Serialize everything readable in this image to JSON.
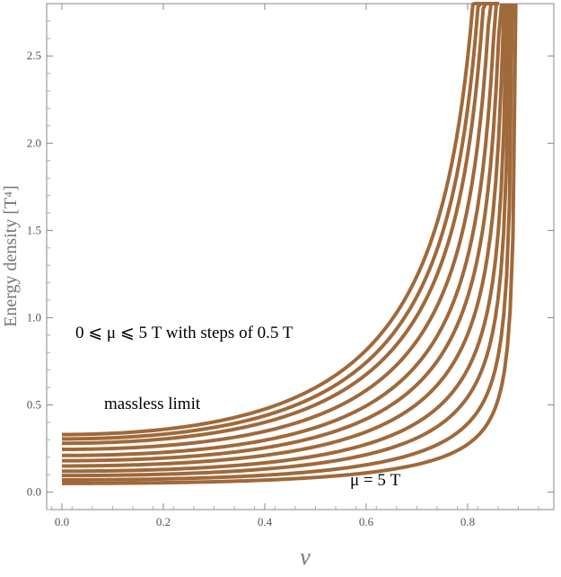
{
  "chart_data": {
    "type": "line",
    "xlabel": "v",
    "ylabel": "Energy density [T⁴]",
    "xlim": [
      -0.03,
      0.97
    ],
    "ylim": [
      -0.1,
      2.8
    ],
    "grid": false,
    "x_ticks": [
      0.0,
      0.2,
      0.4,
      0.6,
      0.8
    ],
    "x_tick_labels": [
      "0.0",
      "0.2",
      "0.4",
      "0.6",
      "0.8"
    ],
    "y_ticks": [
      0.0,
      0.5,
      1.0,
      1.5,
      2.0,
      2.5
    ],
    "y_tick_labels": [
      "0.0",
      "0.5",
      "1.0",
      "1.5",
      "2.0",
      "2.5"
    ],
    "line_color": "#a0693a",
    "series": [
      {
        "name": "",
        "mu": 0.0,
        "values": [
          0.33,
          0.35,
          0.41,
          0.53,
          0.79,
          1.66,
          2.8
        ],
        "x": [
          0.0,
          0.2,
          0.4,
          0.6,
          0.7,
          0.8,
          0.842
        ]
      },
      {
        "name": "",
        "mu": 0.5,
        "values": [
          0.305,
          0.32,
          0.38,
          0.49,
          0.73,
          1.54,
          2.8
        ],
        "x": [
          0.0,
          0.2,
          0.4,
          0.6,
          0.7,
          0.8,
          0.847
        ]
      },
      {
        "name": "",
        "mu": 1.0,
        "values": [
          0.28,
          0.29,
          0.345,
          0.45,
          0.67,
          1.41,
          2.8
        ],
        "x": [
          0.0,
          0.2,
          0.4,
          0.6,
          0.7,
          0.8,
          0.852
        ]
      },
      {
        "name": "",
        "mu": 1.5,
        "values": [
          0.245,
          0.26,
          0.31,
          0.4,
          0.6,
          1.26,
          2.8
        ],
        "x": [
          0.0,
          0.2,
          0.4,
          0.6,
          0.7,
          0.8,
          0.857
        ]
      },
      {
        "name": "",
        "mu": 2.0,
        "values": [
          0.21,
          0.225,
          0.27,
          0.35,
          0.52,
          1.1,
          2.8
        ],
        "x": [
          0.0,
          0.2,
          0.4,
          0.6,
          0.7,
          0.8,
          0.862
        ]
      },
      {
        "name": "",
        "mu": 2.5,
        "values": [
          0.18,
          0.19,
          0.23,
          0.3,
          0.45,
          0.95,
          2.8
        ],
        "x": [
          0.0,
          0.2,
          0.4,
          0.6,
          0.7,
          0.8,
          0.867
        ]
      },
      {
        "name": "",
        "mu": 3.0,
        "values": [
          0.15,
          0.16,
          0.19,
          0.25,
          0.37,
          0.79,
          2.8
        ],
        "x": [
          0.0,
          0.2,
          0.4,
          0.6,
          0.7,
          0.8,
          0.872
        ]
      },
      {
        "name": "",
        "mu": 3.5,
        "values": [
          0.12,
          0.13,
          0.155,
          0.2,
          0.3,
          0.64,
          2.8
        ],
        "x": [
          0.0,
          0.2,
          0.4,
          0.6,
          0.7,
          0.8,
          0.877
        ]
      },
      {
        "name": "",
        "mu": 4.0,
        "values": [
          0.095,
          0.1,
          0.12,
          0.16,
          0.24,
          0.51,
          2.8
        ],
        "x": [
          0.0,
          0.2,
          0.4,
          0.6,
          0.7,
          0.8,
          0.882
        ]
      },
      {
        "name": "",
        "mu": 4.5,
        "values": [
          0.07,
          0.075,
          0.09,
          0.12,
          0.18,
          0.39,
          2.8
        ],
        "x": [
          0.0,
          0.2,
          0.4,
          0.6,
          0.7,
          0.8,
          0.888
        ]
      },
      {
        "name": "",
        "mu": 5.0,
        "values": [
          0.05,
          0.055,
          0.065,
          0.09,
          0.13,
          0.28,
          2.8
        ],
        "x": [
          0.0,
          0.2,
          0.4,
          0.6,
          0.7,
          0.8,
          0.895
        ]
      }
    ],
    "annotations": [
      {
        "id": "range",
        "text": "0 ⩽ μ ⩽ 5 T  with steps of 0.5 T"
      },
      {
        "id": "massless",
        "text": "massless limit"
      },
      {
        "id": "mu5",
        "text": "μ = 5 T"
      }
    ]
  }
}
